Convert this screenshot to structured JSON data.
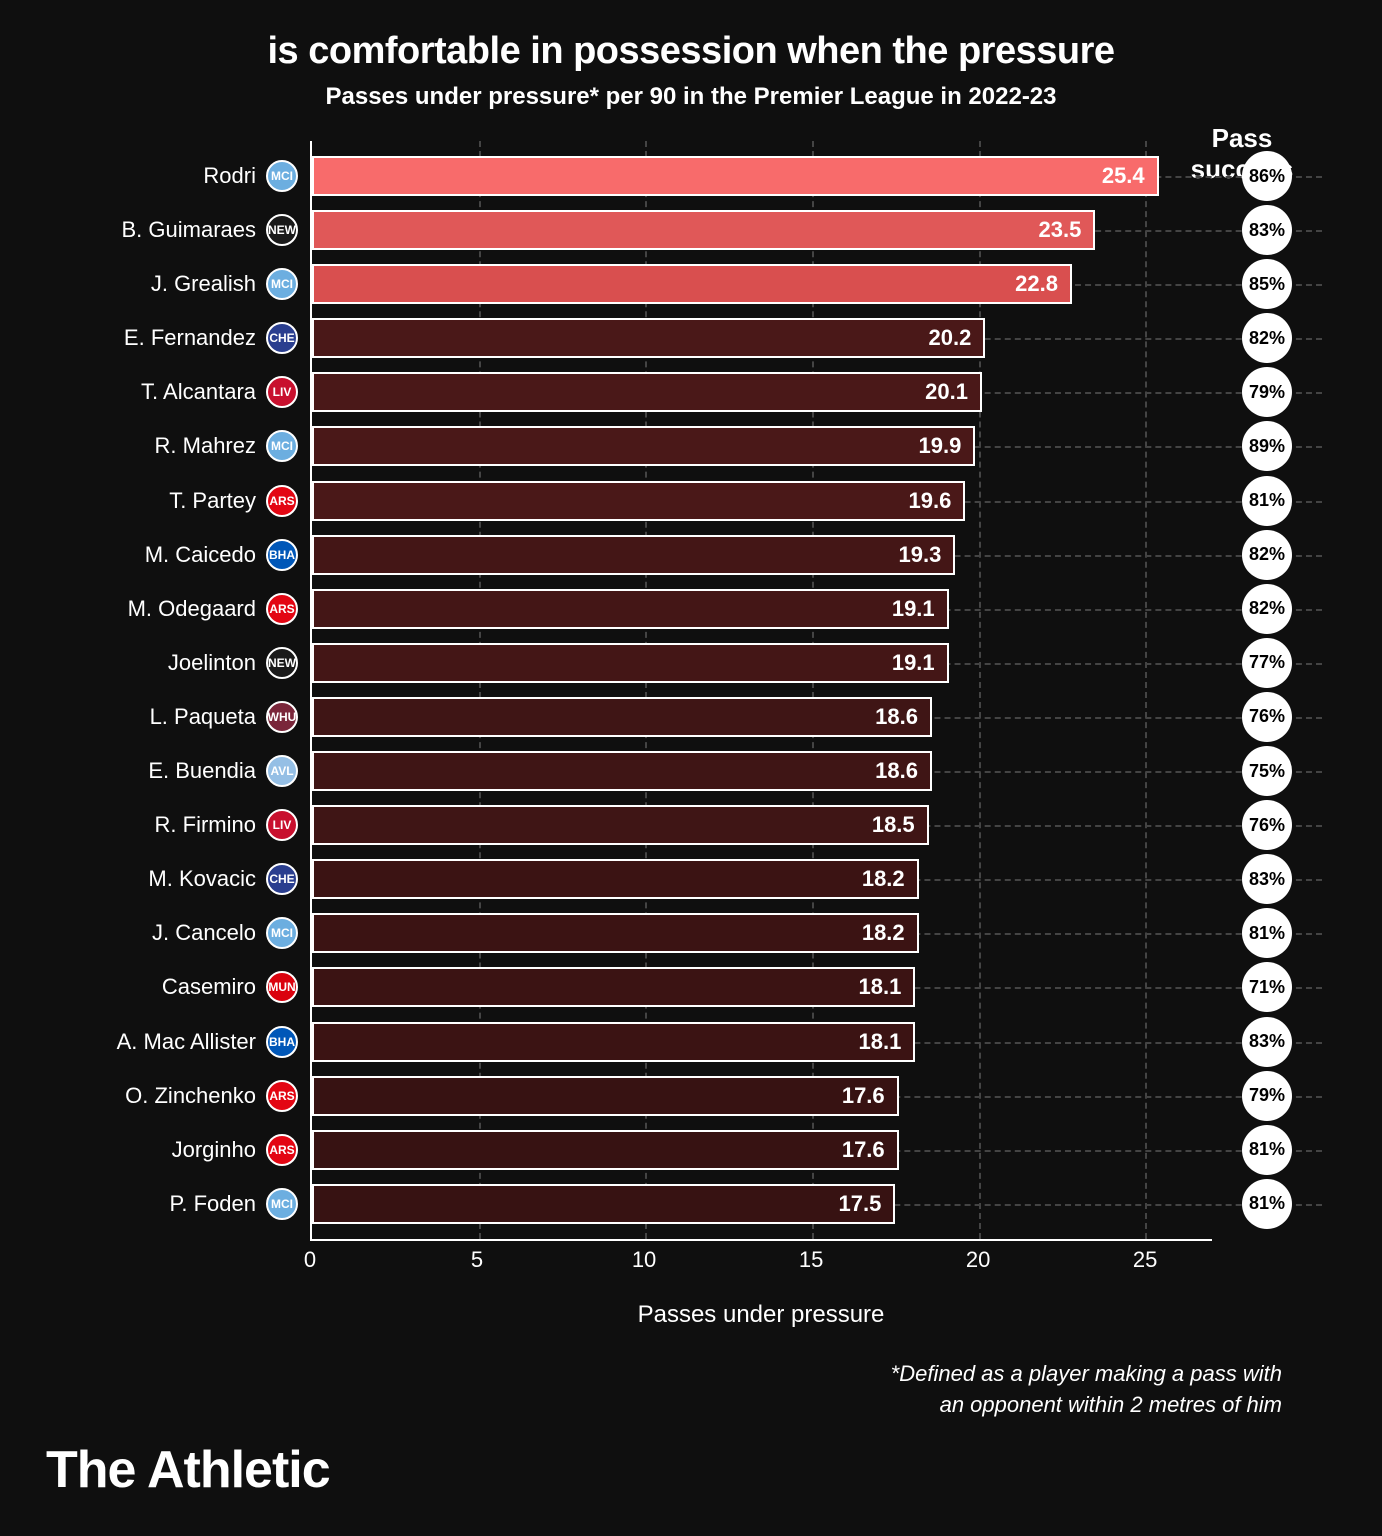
{
  "title": "is comfortable in possession when the pressure",
  "subtitle": "Passes under pressure* per 90 in the Premier League in 2022-23",
  "pass_success_header": "Pass success",
  "x_axis_label": "Passes under pressure",
  "footnote_line1": "*Defined as a player making a pass with",
  "footnote_line2": "an opponent within 2 metres of him",
  "brand": "The Athletic",
  "chart": {
    "type": "horizontal-bar",
    "xlim": [
      0,
      27
    ],
    "xticks": [
      0,
      5,
      10,
      15,
      20,
      25
    ],
    "grid_color": "#444444",
    "background_color": "#0f0f0f",
    "bar_border_color": "#ffffff",
    "badge_bg": "#ffffff",
    "badge_text_color": "#000000",
    "players": [
      {
        "name": "Rodri",
        "club": "MCI",
        "club_bg": "#6caee0",
        "value": 25.4,
        "success": "86%",
        "bar_color": "#f86b6b",
        "highlight": true
      },
      {
        "name": "B. Guimaraes",
        "club": "NEW",
        "club_bg": "#1a1a1a",
        "value": 23.5,
        "success": "83%",
        "bar_color": "#e05858",
        "highlight": true
      },
      {
        "name": "J. Grealish",
        "club": "MCI",
        "club_bg": "#6caee0",
        "value": 22.8,
        "success": "85%",
        "bar_color": "#d94f4f",
        "highlight": true
      },
      {
        "name": "E. Fernandez",
        "club": "CHE",
        "club_bg": "#2a3e8f",
        "value": 20.2,
        "success": "82%",
        "bar_color": "#4a1818",
        "highlight": false
      },
      {
        "name": "T. Alcantara",
        "club": "LIV",
        "club_bg": "#c8102e",
        "value": 20.1,
        "success": "79%",
        "bar_color": "#4a1818",
        "highlight": false
      },
      {
        "name": "R. Mahrez",
        "club": "MCI",
        "club_bg": "#6caee0",
        "value": 19.9,
        "success": "89%",
        "bar_color": "#4a1818",
        "highlight": false
      },
      {
        "name": "T. Partey",
        "club": "ARS",
        "club_bg": "#e30613",
        "value": 19.6,
        "success": "81%",
        "bar_color": "#4a1818",
        "highlight": false
      },
      {
        "name": "M. Caicedo",
        "club": "BHA",
        "club_bg": "#0057b8",
        "value": 19.3,
        "success": "82%",
        "bar_color": "#441616",
        "highlight": false
      },
      {
        "name": "M. Odegaard",
        "club": "ARS",
        "club_bg": "#e30613",
        "value": 19.1,
        "success": "82%",
        "bar_color": "#441616",
        "highlight": false
      },
      {
        "name": "Joelinton",
        "club": "NEW",
        "club_bg": "#1a1a1a",
        "value": 19.1,
        "success": "77%",
        "bar_color": "#441616",
        "highlight": false
      },
      {
        "name": "L. Paqueta",
        "club": "WHU",
        "club_bg": "#7a263a",
        "value": 18.6,
        "success": "76%",
        "bar_color": "#3f1515",
        "highlight": false
      },
      {
        "name": "E. Buendia",
        "club": "AVL",
        "club_bg": "#95bfe5",
        "value": 18.6,
        "success": "75%",
        "bar_color": "#3f1515",
        "highlight": false
      },
      {
        "name": "R. Firmino",
        "club": "LIV",
        "club_bg": "#c8102e",
        "value": 18.5,
        "success": "76%",
        "bar_color": "#3f1515",
        "highlight": false
      },
      {
        "name": "M. Kovacic",
        "club": "CHE",
        "club_bg": "#2a3e8f",
        "value": 18.2,
        "success": "83%",
        "bar_color": "#3b1313",
        "highlight": false
      },
      {
        "name": "J. Cancelo",
        "club": "MCI",
        "club_bg": "#6caee0",
        "value": 18.2,
        "success": "81%",
        "bar_color": "#3b1313",
        "highlight": false
      },
      {
        "name": "Casemiro",
        "club": "MUN",
        "club_bg": "#da020e",
        "value": 18.1,
        "success": "71%",
        "bar_color": "#3b1313",
        "highlight": false
      },
      {
        "name": "A. Mac Allister",
        "club": "BHA",
        "club_bg": "#0057b8",
        "value": 18.1,
        "success": "83%",
        "bar_color": "#3b1313",
        "highlight": false
      },
      {
        "name": "O. Zinchenko",
        "club": "ARS",
        "club_bg": "#e30613",
        "value": 17.6,
        "success": "79%",
        "bar_color": "#371212",
        "highlight": false
      },
      {
        "name": "Jorginho",
        "club": "ARS",
        "club_bg": "#e30613",
        "value": 17.6,
        "success": "81%",
        "bar_color": "#371212",
        "highlight": false
      },
      {
        "name": "P. Foden",
        "club": "MCI",
        "club_bg": "#6caee0",
        "value": 17.5,
        "success": "81%",
        "bar_color": "#371212",
        "highlight": false
      }
    ]
  }
}
